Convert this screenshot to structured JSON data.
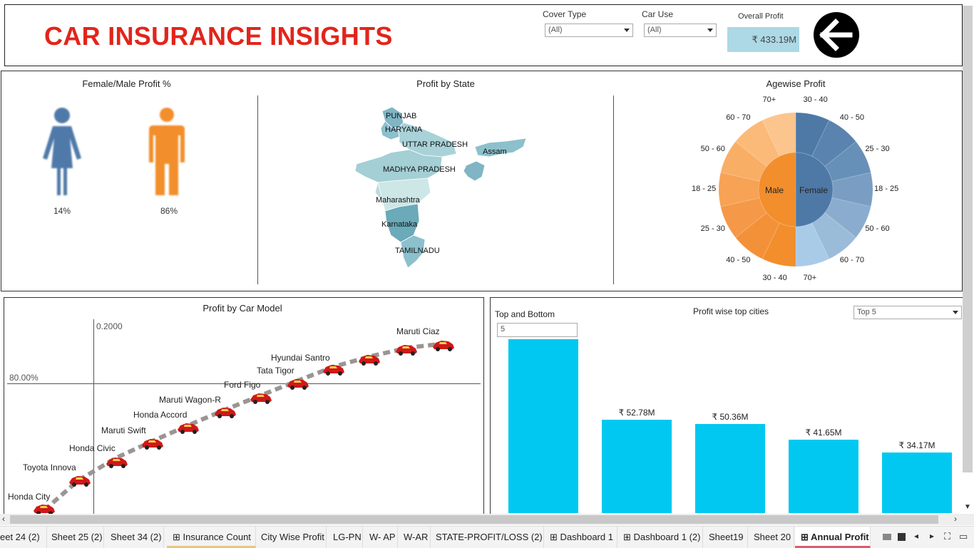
{
  "header": {
    "title": "CAR INSURANCE INSIGHTS",
    "cover_type_label": "Cover Type",
    "cover_type_value": "(All)",
    "car_use_label": "Car Use",
    "car_use_value": "(All)",
    "overall_profit_label": "Overall Profit",
    "overall_profit_value": "₹ 433.19M"
  },
  "gender": {
    "title": "Female/Male Profit %",
    "female_pct": "14%",
    "male_pct": "86%"
  },
  "map": {
    "title": "Profit by State",
    "states": [
      "PUNJAB",
      "HARYANA",
      "UTTAR PRADESH",
      "Assam",
      "MADHYA PRADESH",
      "Maharashtra",
      "Karnataka",
      "TAMILNADU"
    ]
  },
  "age": {
    "title": "Agewise Profit",
    "center_male": "Male",
    "center_female": "Female",
    "female_labels": [
      "30 - 40",
      "40 - 50",
      "25 - 30",
      "18 - 25",
      "50 - 60",
      "60 - 70",
      "70+"
    ],
    "male_labels": [
      "70+",
      "60 - 70",
      "50 - 60",
      "18 - 25",
      "25 - 30",
      "40 - 50",
      "30 - 40"
    ]
  },
  "car_model": {
    "title": "Profit by Car Model",
    "y_ref": "0.2000",
    "x_ref": "80.00%",
    "models": [
      "Honda City",
      "Toyota Innova",
      "Honda Civic",
      "Maruti Swift",
      "Honda Accord",
      "Maruti Wagon-R",
      "Ford Figo",
      "Tata Tigor",
      "Hyundai Santro",
      "Maruti Ciaz"
    ]
  },
  "cities": {
    "title": "Profit wise top cities",
    "top_bottom_label": "Top and Bottom",
    "top_bottom_value": "5",
    "selector_value": "Top 5",
    "chart_data": {
      "type": "bar",
      "categories": [
        "",
        "",
        "",
        "",
        ""
      ],
      "values": [
        null,
        52.78,
        50.36,
        41.65,
        34.17
      ],
      "value_labels": [
        "",
        "₹ 52.78M",
        "₹ 50.36M",
        "₹ 41.65M",
        "₹ 34.17M"
      ]
    }
  },
  "tabs": [
    "eet 24 (2)",
    "Sheet 25 (2)",
    "Sheet 34 (2)",
    "Insurance Count",
    "City Wise Profit",
    "LG-PN",
    "W- AP",
    "W-AR",
    "STATE-PROFIT/LOSS (2)",
    "Dashboard 1",
    "Dashboard 1 (2)",
    "Sheet19",
    "Sheet 20",
    "Annual Profit"
  ],
  "colors": {
    "title_red": "#e1251b",
    "female_blue": "#4f79a8",
    "male_orange": "#f28e2b",
    "bar_cyan": "#00c8f0",
    "kpi_bg": "#add8e6"
  }
}
